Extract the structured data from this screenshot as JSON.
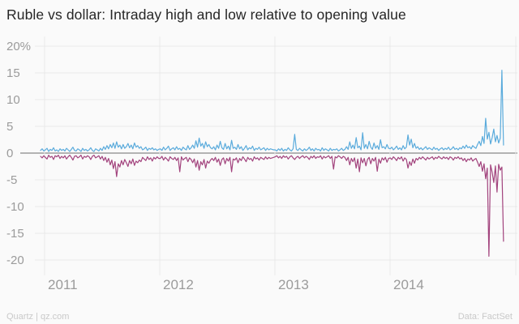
{
  "footer": {
    "credit": "Quartz | qz.com",
    "source": "Data: FactSet"
  },
  "colors": {
    "high_line": "#5aabdc",
    "low_line": "#a2437d",
    "grid": "#e9e9e9",
    "zero_line": "#b3b3b3",
    "tick_label": "#9b9b9b",
    "title_text": "#262626",
    "background": "#fafafa"
  },
  "chart_data": {
    "type": "line",
    "title": "Ruble vs dollar: Intraday high and low relative to opening value",
    "grid": true,
    "legend": "none",
    "x_start": 2010.965,
    "x_step": 0.014056,
    "x_axis": {
      "ticks": [
        2011,
        2012,
        2013,
        2014
      ],
      "labels": [
        "2011",
        "2012",
        "2013",
        "2014"
      ],
      "xlim": [
        2010.9,
        2015.1
      ]
    },
    "y_axis": {
      "ticks": [
        20,
        15,
        10,
        5,
        0,
        -5,
        -10,
        -15,
        -20
      ],
      "labels": [
        "20%",
        "15",
        "10",
        "5",
        "0",
        "-5",
        "-10",
        "-15",
        "-20"
      ],
      "ylim": [
        -20,
        20
      ],
      "unit": "percent"
    },
    "series": [
      {
        "name": "Intraday high",
        "color": "#5aabdc",
        "values": [
          0.5,
          0.8,
          0.4,
          0.6,
          0.9,
          0.3,
          0.7,
          0.5,
          1.0,
          0.4,
          0.6,
          0.3,
          0.8,
          0.5,
          0.7,
          0.4,
          0.9,
          0.6,
          0.3,
          0.7,
          1.1,
          0.5,
          0.4,
          0.8,
          0.6,
          0.3,
          0.9,
          0.5,
          0.7,
          0.4,
          0.6,
          1.0,
          0.5,
          0.3,
          0.8,
          0.6,
          0.4,
          0.9,
          0.5,
          1.2,
          0.7,
          1.4,
          0.8,
          1.6,
          1.0,
          1.9,
          0.9,
          2.1,
          1.1,
          1.5,
          0.8,
          1.6,
          0.9,
          1.2,
          1.8,
          1.0,
          1.5,
          0.8,
          1.9,
          1.1,
          1.4,
          0.9,
          1.2,
          0.6,
          0.8,
          1.1,
          0.5,
          0.9,
          0.7,
          1.0,
          0.6,
          0.8,
          0.5,
          0.7,
          0.8,
          0.5,
          1.1,
          0.6,
          0.9,
          1.3,
          0.5,
          0.8,
          1.0,
          0.6,
          1.2,
          0.7,
          0.9,
          0.5,
          1.1,
          0.8,
          0.6,
          1.4,
          0.7,
          1.0,
          1.5,
          0.9,
          2.3,
          1.1,
          2.8,
          1.3,
          1.8,
          0.9,
          2.1,
          1.2,
          1.6,
          1.0,
          0.8,
          1.2,
          0.6,
          1.5,
          0.9,
          2.2,
          1.0,
          0.7,
          1.8,
          0.8,
          1.3,
          0.6,
          2.4,
          0.9,
          1.1,
          0.7,
          1.6,
          0.8,
          1.2,
          0.5,
          0.9,
          1.4,
          0.6,
          1.0,
          0.8,
          1.3,
          0.5,
          0.9,
          0.7,
          1.1,
          0.6,
          0.8,
          1.0,
          0.5,
          0.9,
          0.6,
          0.8,
          0.7,
          0.6,
          0.6,
          0.4,
          0.8,
          0.5,
          0.9,
          0.4,
          0.7,
          0.5,
          1.0,
          0.6,
          0.4,
          0.8,
          3.5,
          0.7,
          0.5,
          0.9,
          0.6,
          0.4,
          0.8,
          0.5,
          0.7,
          1.1,
          0.5,
          0.8,
          0.4,
          0.9,
          0.6,
          0.7,
          0.4,
          1.0,
          0.5,
          0.8,
          0.6,
          0.4,
          0.9,
          0.5,
          0.7,
          0.6,
          0.8,
          0.4,
          0.6,
          0.9,
          0.5,
          0.7,
          1.2,
          0.7,
          2.1,
          0.9,
          1.5,
          0.8,
          2.9,
          1.0,
          1.3,
          0.6,
          3.8,
          0.9,
          1.6,
          0.8,
          2.2,
          1.1,
          0.7,
          1.9,
          0.9,
          1.4,
          0.7,
          2.5,
          1.0,
          1.2,
          0.8,
          1.6,
          0.9,
          0.8,
          1.1,
          0.6,
          0.9,
          1.3,
          0.7,
          1.0,
          0.6,
          1.4,
          0.8,
          1.1,
          3.4,
          1.5,
          2.6,
          1.0,
          1.8,
          0.9,
          1.2,
          0.7,
          1.0,
          0.6,
          0.9,
          1.2,
          0.7,
          1.0,
          0.8,
          0.6,
          1.1,
          0.7,
          0.9,
          0.5,
          0.8,
          1.0,
          0.6,
          0.9,
          0.7,
          1.1,
          0.6,
          0.8,
          1.2,
          0.7,
          0.9,
          0.6,
          1.0,
          0.8,
          1.3,
          0.9,
          1.5,
          1.0,
          1.2,
          0.8,
          1.4,
          1.1,
          0.9,
          1.6,
          2.2,
          1.4,
          3.1,
          1.8,
          6.5,
          2.6,
          3.9,
          1.7,
          2.9,
          4.5,
          2.1,
          3.3,
          1.9,
          2.8,
          15.5,
          1.5
        ]
      },
      {
        "name": "Intraday low",
        "color": "#a2437d",
        "values": [
          -0.6,
          -0.9,
          -0.5,
          -0.8,
          -1.1,
          -0.4,
          -0.8,
          -0.6,
          -1.2,
          -0.5,
          -0.7,
          -0.4,
          -1.0,
          -0.6,
          -0.9,
          -0.5,
          -1.1,
          -0.7,
          -0.4,
          -0.8,
          -1.3,
          -0.6,
          -0.5,
          -0.9,
          -0.7,
          -0.4,
          -1.1,
          -0.6,
          -0.8,
          -0.5,
          -0.7,
          -1.2,
          -0.6,
          -0.4,
          -0.9,
          -0.7,
          -0.5,
          -1.1,
          -0.6,
          -1.4,
          -0.8,
          -1.7,
          -1.0,
          -2.2,
          -1.3,
          -2.9,
          -1.6,
          -4.4,
          -2.0,
          -2.6,
          -1.4,
          -2.2,
          -1.2,
          -1.8,
          -2.5,
          -1.4,
          -2.0,
          -1.1,
          -2.3,
          -1.5,
          -1.8,
          -1.3,
          -1.6,
          -0.8,
          -1.1,
          -1.4,
          -0.7,
          -1.2,
          -0.9,
          -1.5,
          -0.8,
          -1.1,
          -0.7,
          -1.0,
          -1.0,
          -0.6,
          -1.3,
          -0.8,
          -1.1,
          -1.5,
          -0.7,
          -1.0,
          -1.2,
          -0.8,
          -1.4,
          -0.9,
          -3.5,
          -0.7,
          -1.3,
          -1.0,
          -0.8,
          -1.6,
          -0.9,
          -1.2,
          -1.8,
          -1.1,
          -2.6,
          -1.4,
          -3.2,
          -1.6,
          -2.2,
          -1.2,
          -2.8,
          -1.5,
          -1.9,
          -1.3,
          -1.0,
          -1.4,
          -0.8,
          -1.7,
          -1.1,
          -2.3,
          -1.2,
          -0.9,
          -2.0,
          -1.0,
          -1.5,
          -0.8,
          -3.5,
          -1.1,
          -1.3,
          -0.9,
          -1.8,
          -1.0,
          -1.4,
          -0.7,
          -1.1,
          -1.6,
          -0.8,
          -1.2,
          -1.0,
          -1.5,
          -0.7,
          -1.1,
          -0.9,
          -1.3,
          -0.8,
          -1.0,
          -1.2,
          -0.7,
          -1.1,
          -0.8,
          -1.0,
          -0.9,
          -0.8,
          -0.7,
          -0.5,
          -0.9,
          -0.6,
          -1.0,
          -0.5,
          -0.8,
          -0.6,
          -1.1,
          -0.7,
          -0.5,
          -0.9,
          -1.2,
          -0.8,
          -0.6,
          -1.0,
          -0.7,
          -0.5,
          -0.9,
          -0.6,
          -0.8,
          -1.2,
          -0.6,
          -0.9,
          -0.5,
          -1.0,
          -0.7,
          -0.8,
          -0.5,
          -1.1,
          -0.6,
          -0.9,
          -0.7,
          -0.5,
          -1.0,
          -0.6,
          -3.0,
          -0.7,
          -0.9,
          -0.5,
          -0.7,
          -1.0,
          -0.6,
          -0.8,
          -1.4,
          -0.8,
          -2.2,
          -1.0,
          -1.6,
          -0.9,
          -2.8,
          -1.1,
          -3.5,
          -0.9,
          -1.8,
          -1.0,
          -2.4,
          -1.2,
          -0.8,
          -2.0,
          -1.0,
          -1.5,
          -0.8,
          -3.4,
          -1.1,
          -1.9,
          -0.9,
          -1.3,
          -0.8,
          -1.7,
          -1.0,
          -0.9,
          -1.2,
          -0.7,
          -1.0,
          -1.4,
          -0.8,
          -1.1,
          -0.7,
          -1.5,
          -0.9,
          -1.2,
          -2.8,
          -1.6,
          -2.3,
          -1.1,
          -1.9,
          -1.0,
          -1.3,
          -0.8,
          -1.1,
          -0.7,
          -1.0,
          -1.3,
          -0.8,
          -1.1,
          -0.9,
          -0.7,
          -1.2,
          -0.8,
          -1.0,
          -0.6,
          -0.9,
          -1.1,
          -0.7,
          -1.0,
          -0.8,
          -1.2,
          -0.7,
          -0.9,
          -1.3,
          -0.8,
          -1.0,
          -0.7,
          -1.1,
          -0.9,
          -1.4,
          -1.0,
          -1.6,
          -1.1,
          -1.3,
          -0.9,
          -1.5,
          -1.2,
          -1.0,
          -1.7,
          -2.5,
          -1.6,
          -3.4,
          -2.0,
          -4.8,
          -2.8,
          -19.3,
          -2.2,
          -3.6,
          -5.5,
          -2.4,
          -7.3,
          -2.1,
          -3.2,
          -2.6,
          -16.5
        ]
      }
    ]
  }
}
